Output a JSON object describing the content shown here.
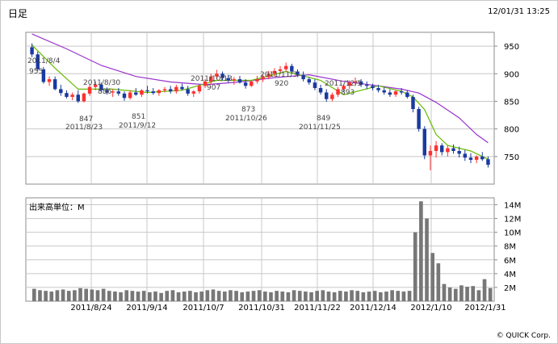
{
  "header": {
    "title": "日足",
    "timestamp": "12/01/31 13:25"
  },
  "footer": {
    "copyright": "© QUICK Corp."
  },
  "colors": {
    "up": "#ff3030",
    "down": "#1a3aa0",
    "ma_short": "#66bb00",
    "ma_long": "#9933cc",
    "volume": "#777777",
    "grid": "#c8c8c8"
  },
  "chart_data": [
    {
      "type": "candlestick",
      "title": "",
      "ylim": [
        700,
        975
      ],
      "y_ticks": [
        950,
        900,
        850,
        800,
        750
      ],
      "x_tick_labels": [
        "2011/8/24",
        "2011/9/14",
        "2011/10/7",
        "2011/10/31",
        "2011/11/22",
        "2011/12/14",
        "2012/1/10",
        "2012/1/31"
      ],
      "annotations": [
        {
          "date": "2011/8/4",
          "value": "955"
        },
        {
          "date": "2011/8/23",
          "value": "847"
        },
        {
          "date": "2011/8/30",
          "value": "886"
        },
        {
          "date": "2011/9/12",
          "value": "851"
        },
        {
          "date": "2011/10/13",
          "value": "907"
        },
        {
          "date": "2011/10/26",
          "value": "873"
        },
        {
          "date": "2011/11/3",
          "value": "920"
        },
        {
          "date": "2011/11/25",
          "value": "849"
        },
        {
          "date": "2011/12/5",
          "value": "893"
        }
      ],
      "candles": [
        [
          948,
          955,
          930,
          935
        ],
        [
          935,
          940,
          905,
          908
        ],
        [
          908,
          912,
          882,
          885
        ],
        [
          885,
          895,
          878,
          890
        ],
        [
          890,
          895,
          870,
          872
        ],
        [
          872,
          880,
          860,
          865
        ],
        [
          865,
          870,
          855,
          858
        ],
        [
          858,
          866,
          852,
          862
        ],
        [
          862,
          870,
          847,
          850
        ],
        [
          850,
          866,
          848,
          864
        ],
        [
          864,
          880,
          860,
          876
        ],
        [
          876,
          886,
          870,
          880
        ],
        [
          880,
          884,
          866,
          870
        ],
        [
          870,
          875,
          862,
          866
        ],
        [
          866,
          872,
          858,
          868
        ],
        [
          868,
          874,
          860,
          864
        ],
        [
          864,
          868,
          851,
          856
        ],
        [
          856,
          870,
          853,
          866
        ],
        [
          866,
          874,
          860,
          862
        ],
        [
          862,
          872,
          858,
          870
        ],
        [
          870,
          878,
          864,
          868
        ],
        [
          868,
          874,
          862,
          865
        ],
        [
          865,
          872,
          860,
          870
        ],
        [
          870,
          876,
          866,
          872
        ],
        [
          872,
          878,
          864,
          868
        ],
        [
          868,
          880,
          864,
          876
        ],
        [
          876,
          882,
          870,
          872
        ],
        [
          872,
          878,
          860,
          864
        ],
        [
          864,
          870,
          858,
          868
        ],
        [
          868,
          880,
          864,
          878
        ],
        [
          878,
          890,
          874,
          886
        ],
        [
          886,
          900,
          880,
          895
        ],
        [
          895,
          907,
          890,
          900
        ],
        [
          900,
          904,
          888,
          892
        ],
        [
          892,
          898,
          884,
          888
        ],
        [
          888,
          894,
          880,
          890
        ],
        [
          890,
          896,
          882,
          884
        ],
        [
          884,
          890,
          873,
          878
        ],
        [
          878,
          888,
          876,
          886
        ],
        [
          886,
          896,
          882,
          890
        ],
        [
          890,
          898,
          885,
          894
        ],
        [
          894,
          905,
          890,
          900
        ],
        [
          900,
          910,
          895,
          905
        ],
        [
          905,
          914,
          900,
          908
        ],
        [
          908,
          920,
          904,
          914
        ],
        [
          914,
          918,
          900,
          904
        ],
        [
          904,
          908,
          894,
          898
        ],
        [
          898,
          904,
          886,
          890
        ],
        [
          890,
          894,
          880,
          884
        ],
        [
          884,
          890,
          870,
          874
        ],
        [
          874,
          880,
          862,
          866
        ],
        [
          866,
          872,
          849,
          854
        ],
        [
          854,
          866,
          850,
          862
        ],
        [
          862,
          876,
          858,
          872
        ],
        [
          872,
          882,
          866,
          878
        ],
        [
          878,
          888,
          872,
          884
        ],
        [
          884,
          893,
          878,
          886
        ],
        [
          886,
          890,
          876,
          880
        ],
        [
          880,
          886,
          872,
          878
        ],
        [
          878,
          882,
          870,
          874
        ],
        [
          874,
          880,
          866,
          870
        ],
        [
          870,
          876,
          862,
          866
        ],
        [
          866,
          872,
          858,
          862
        ],
        [
          862,
          870,
          858,
          868
        ],
        [
          868,
          874,
          862,
          866
        ],
        [
          866,
          870,
          855,
          858
        ],
        [
          858,
          862,
          830,
          836
        ],
        [
          836,
          840,
          795,
          800
        ],
        [
          800,
          805,
          745,
          752
        ],
        [
          752,
          770,
          725,
          760
        ],
        [
          760,
          778,
          748,
          770
        ],
        [
          770,
          774,
          752,
          758
        ],
        [
          758,
          770,
          750,
          765
        ],
        [
          765,
          772,
          755,
          760
        ],
        [
          760,
          768,
          748,
          755
        ],
        [
          755,
          762,
          742,
          748
        ],
        [
          748,
          756,
          738,
          744
        ],
        [
          744,
          752,
          738,
          750
        ],
        [
          750,
          758,
          742,
          745
        ],
        [
          745,
          750,
          730,
          735
        ]
      ],
      "ma_short": [
        [
          0,
          952
        ],
        [
          4,
          910
        ],
        [
          8,
          872
        ],
        [
          14,
          872
        ],
        [
          20,
          866
        ],
        [
          26,
          870
        ],
        [
          32,
          888
        ],
        [
          38,
          888
        ],
        [
          44,
          904
        ],
        [
          50,
          888
        ],
        [
          54,
          862
        ],
        [
          60,
          878
        ],
        [
          64,
          868
        ],
        [
          66,
          858
        ],
        [
          68,
          835
        ],
        [
          70,
          790
        ],
        [
          72,
          770
        ],
        [
          76,
          760
        ],
        [
          79,
          745
        ]
      ],
      "ma_long": [
        [
          0,
          972
        ],
        [
          6,
          945
        ],
        [
          12,
          915
        ],
        [
          18,
          895
        ],
        [
          24,
          885
        ],
        [
          30,
          880
        ],
        [
          36,
          885
        ],
        [
          42,
          893
        ],
        [
          48,
          898
        ],
        [
          54,
          886
        ],
        [
          60,
          878
        ],
        [
          64,
          872
        ],
        [
          67,
          865
        ],
        [
          70,
          848
        ],
        [
          74,
          820
        ],
        [
          77,
          790
        ],
        [
          79,
          775
        ]
      ]
    },
    {
      "type": "bar",
      "title": "出来高単位：M",
      "ylim": [
        0,
        15
      ],
      "y_ticks_values": [
        14,
        12,
        10,
        8,
        6,
        4,
        2
      ],
      "y_ticks": [
        "14M",
        "12M",
        "10M",
        "8M",
        "6M",
        "4M",
        "2M"
      ],
      "values": [
        1.8,
        1.6,
        1.5,
        1.4,
        1.6,
        1.7,
        1.5,
        1.6,
        1.9,
        1.8,
        1.7,
        1.6,
        1.8,
        1.5,
        1.4,
        1.3,
        1.6,
        1.5,
        1.4,
        1.5,
        1.3,
        1.4,
        1.2,
        1.5,
        1.6,
        1.3,
        1.4,
        1.5,
        1.3,
        1.4,
        1.6,
        1.7,
        1.5,
        1.4,
        1.6,
        1.5,
        1.3,
        1.4,
        1.5,
        1.6,
        1.4,
        1.3,
        1.5,
        1.4,
        1.3,
        1.6,
        1.5,
        1.4,
        1.3,
        1.5,
        1.6,
        1.4,
        1.3,
        1.5,
        1.4,
        1.6,
        1.5,
        1.3,
        1.4,
        1.5,
        1.3,
        1.4,
        1.6,
        1.5,
        1.4,
        1.5,
        10.0,
        14.5,
        12.0,
        7.0,
        5.5,
        2.5,
        2.0,
        1.8,
        2.3,
        2.1,
        2.2,
        1.6,
        3.2,
        1.9
      ]
    }
  ]
}
